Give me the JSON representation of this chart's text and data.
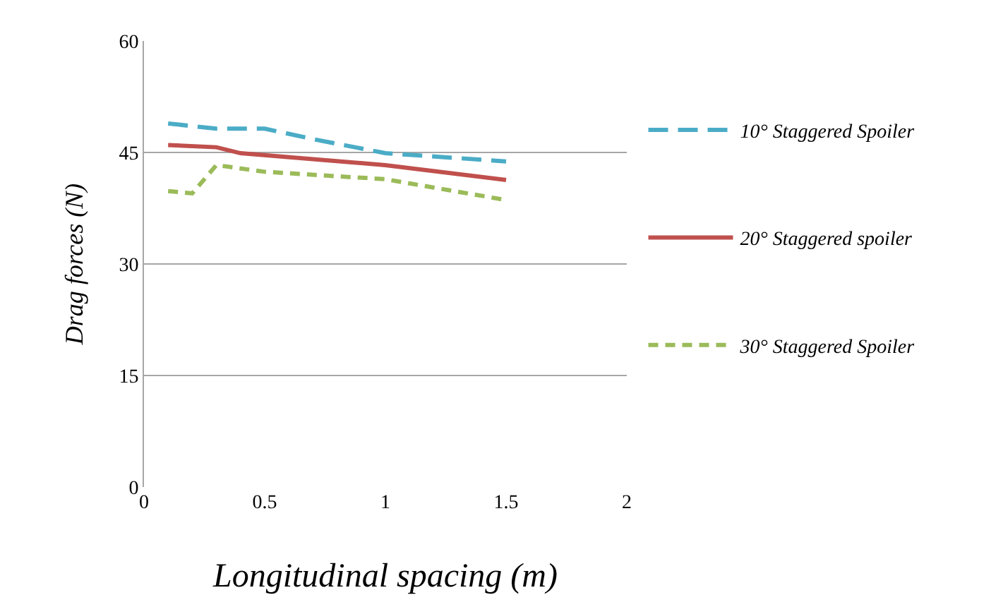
{
  "chart_data": {
    "type": "line",
    "xlabel": "Longitudinal spacing (m)",
    "ylabel": "Drag forces (N)",
    "xlim": [
      0,
      2
    ],
    "xticks": [
      0,
      0.5,
      1,
      1.5,
      2
    ],
    "ylim": [
      0,
      60
    ],
    "yticks": [
      0,
      15,
      30,
      45,
      60
    ],
    "grid": "y",
    "legend": "right",
    "marker": "none",
    "series": [
      {
        "name": "10° Staggered Spoiler",
        "color": "#4bacc6",
        "line_style": "dashed",
        "x": [
          0.1,
          0.3,
          0.5,
          0.7,
          1.0,
          1.5
        ],
        "values": [
          48.9,
          48.2,
          48.2,
          46.8,
          44.9,
          43.8
        ]
      },
      {
        "name": "20° Staggered spoiler",
        "color": "#c0504d",
        "line_style": "solid",
        "x": [
          0.1,
          0.3,
          0.4,
          1.0,
          1.5
        ],
        "values": [
          46.0,
          45.7,
          44.9,
          43.3,
          41.3
        ]
      },
      {
        "name": "30° Staggered Spoiler",
        "color": "#9bbb59",
        "line_style": "dotted",
        "x": [
          0.1,
          0.2,
          0.3,
          0.5,
          1.0,
          1.5
        ],
        "values": [
          39.8,
          39.5,
          43.3,
          42.4,
          41.4,
          38.6
        ]
      }
    ]
  }
}
